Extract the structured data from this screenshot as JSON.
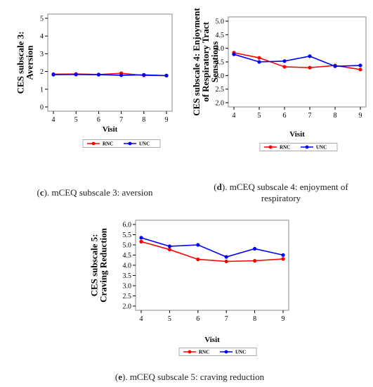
{
  "colors": {
    "RNC": "#ff0000",
    "UNC": "#0000ff"
  },
  "charts": [
    {
      "id": "c",
      "caption_letter": "c",
      "caption_text": ". mCEQ subscale 3: aversion",
      "chart_data": {
        "type": "line",
        "x": [
          4,
          5,
          6,
          7,
          8,
          9
        ],
        "xlabel": "Visit",
        "ylabel": [
          "CES subscale 3:",
          "Aversion"
        ],
        "ylim": [
          0,
          5
        ],
        "yticks": [
          "0",
          "1",
          "2",
          "3",
          "4",
          "5"
        ],
        "grid": false,
        "legend_placement": "bottom",
        "series": [
          {
            "name": "RNC",
            "values": [
              1.85,
              1.86,
              1.83,
              1.9,
              1.78,
              1.77
            ]
          },
          {
            "name": "UNC",
            "values": [
              1.82,
              1.83,
              1.82,
              1.79,
              1.81,
              1.77
            ]
          }
        ]
      }
    },
    {
      "id": "d",
      "caption_letter": "d",
      "caption_text": ". mCEQ subscale 4: enjoyment of respiratory",
      "chart_data": {
        "type": "line",
        "x": [
          4,
          5,
          6,
          7,
          8,
          9
        ],
        "xlabel": "Visit",
        "ylabel": [
          "CES subscale 4: Enjoyment",
          "of Respiratory Tract",
          "Sensations"
        ],
        "ylim": [
          2.0,
          5.0
        ],
        "yticks": [
          "2.0",
          "2.5",
          "3.0",
          "3.5",
          "4.0",
          "4.5",
          "5.0"
        ],
        "grid": false,
        "legend_placement": "bottom",
        "series": [
          {
            "name": "RNC",
            "values": [
              3.84,
              3.65,
              3.32,
              3.29,
              3.37,
              3.22
            ]
          },
          {
            "name": "UNC",
            "values": [
              3.78,
              3.5,
              3.53,
              3.71,
              3.34,
              3.37
            ]
          }
        ]
      }
    },
    {
      "id": "e",
      "caption_letter": "e",
      "caption_text": ". mCEQ subscale 5: craving reduction",
      "chart_data": {
        "type": "line",
        "x": [
          4,
          5,
          6,
          7,
          8,
          9
        ],
        "xlabel": "Visit",
        "ylabel": [
          "CES subscale 5:",
          "Craving Reduction"
        ],
        "ylim": [
          2.0,
          6.0
        ],
        "yticks": [
          "2.0",
          "2.5",
          "3.0",
          "3.5",
          "4.0",
          "4.5",
          "5.0",
          "5.5",
          "6.0"
        ],
        "grid": false,
        "legend_placement": "bottom",
        "series": [
          {
            "name": "RNC",
            "values": [
              5.16,
              4.77,
              4.29,
              4.19,
              4.22,
              4.31
            ]
          },
          {
            "name": "UNC",
            "values": [
              5.35,
              4.93,
              5.0,
              4.41,
              4.81,
              4.5
            ]
          }
        ]
      }
    }
  ]
}
